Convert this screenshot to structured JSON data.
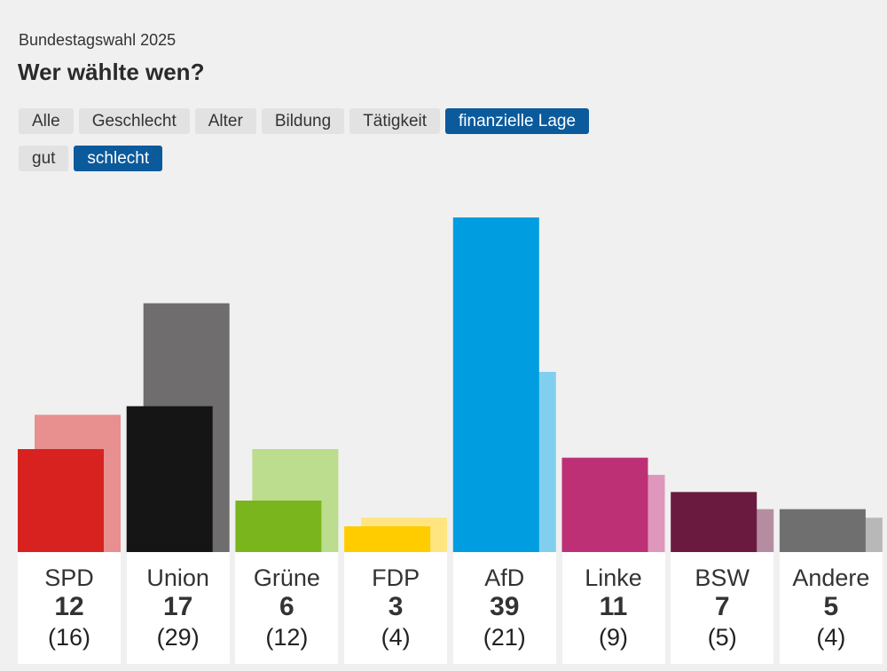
{
  "header": {
    "subtitle": "Bundestagswahl 2025",
    "title": "Wer wählte wen?"
  },
  "filters": {
    "categories": [
      {
        "label": "Alle",
        "active": false
      },
      {
        "label": "Geschlecht",
        "active": false
      },
      {
        "label": "Alter",
        "active": false
      },
      {
        "label": "Bildung",
        "active": false
      },
      {
        "label": "Tätigkeit",
        "active": false
      },
      {
        "label": "finanzielle Lage",
        "active": true
      }
    ],
    "subcategories": [
      {
        "label": "gut",
        "active": false
      },
      {
        "label": "schlecht",
        "active": true
      }
    ]
  },
  "chart_data": {
    "type": "bar",
    "categories": [
      "SPD",
      "Union",
      "Grüne",
      "FDP",
      "AfD",
      "Linke",
      "BSW",
      "Andere"
    ],
    "series": [
      {
        "values": [
          12,
          17,
          6,
          3,
          39,
          11,
          7,
          5
        ],
        "colors": [
          "#d7221f",
          "#151515",
          "#7ab51d",
          "#ffcc00",
          "#009de0",
          "#be3075",
          "#6b1a3f",
          "#6f6f6f"
        ]
      },
      {
        "values": [
          16,
          29,
          12,
          4,
          21,
          9,
          5,
          4
        ],
        "colors": [
          "#e88f8f",
          "#6f6d6e",
          "#bcdc8e",
          "#ffe57f",
          "#80cfef",
          "#de97ba",
          "#b68ca0",
          "#b8b8b8"
        ]
      }
    ],
    "value_labels": [
      "12",
      "17",
      "6",
      "3",
      "39",
      "11",
      "7",
      "5"
    ],
    "previous_labels": [
      "(16)",
      "(29)",
      "(12)",
      "(4)",
      "(21)",
      "(9)",
      "(5)",
      "(4)"
    ],
    "ylim": [
      0,
      40
    ],
    "grid": false
  }
}
